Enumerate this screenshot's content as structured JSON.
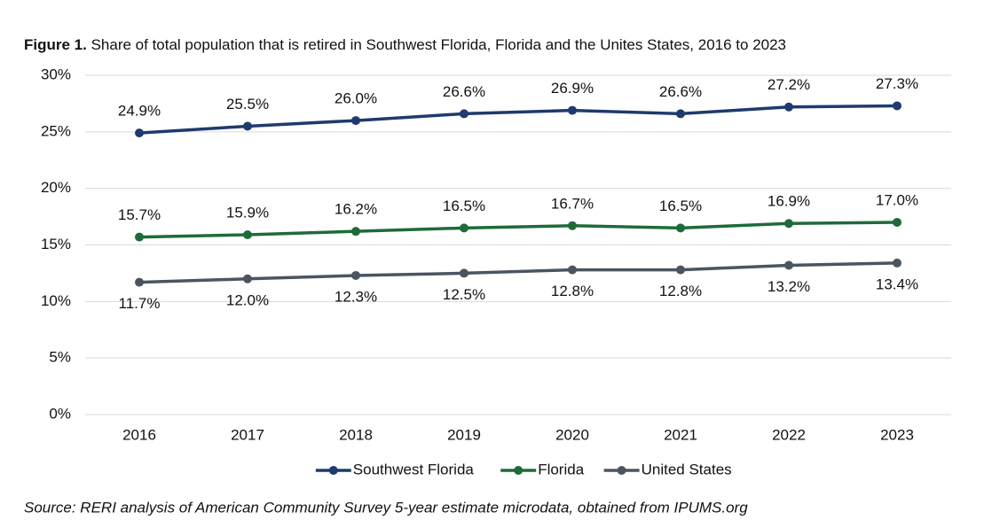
{
  "chart_data": {
    "type": "line",
    "figure_label": "Figure 1.",
    "title": "Share of total population that is retired in Southwest Florida, Florida and the Unites States, 2016 to 2023",
    "categories": [
      "2016",
      "2017",
      "2018",
      "2019",
      "2020",
      "2021",
      "2022",
      "2023"
    ],
    "series": [
      {
        "name": "Southwest Florida",
        "color": "#1f3a6e",
        "values": [
          24.9,
          25.5,
          26.0,
          26.6,
          26.9,
          26.6,
          27.2,
          27.3
        ],
        "value_labels": [
          "24.9%",
          "25.5%",
          "26.0%",
          "26.6%",
          "26.9%",
          "26.6%",
          "27.2%",
          "27.3%"
        ]
      },
      {
        "name": "Florida",
        "color": "#1e6b3a",
        "values": [
          15.7,
          15.9,
          16.2,
          16.5,
          16.7,
          16.5,
          16.9,
          17.0
        ],
        "value_labels": [
          "15.7%",
          "15.9%",
          "16.2%",
          "16.5%",
          "16.7%",
          "16.5%",
          "16.9%",
          "17.0%"
        ]
      },
      {
        "name": "United States",
        "color": "#4a5560",
        "values": [
          11.7,
          12.0,
          12.3,
          12.5,
          12.8,
          12.8,
          13.2,
          13.4
        ],
        "value_labels": [
          "11.7%",
          "12.0%",
          "12.3%",
          "12.5%",
          "12.8%",
          "12.8%",
          "13.2%",
          "13.4%"
        ]
      }
    ],
    "ylim": [
      0,
      30
    ],
    "yticks": [
      {
        "value": 0,
        "label": "0%"
      },
      {
        "value": 5,
        "label": "5%"
      },
      {
        "value": 10,
        "label": "10%"
      },
      {
        "value": 15,
        "label": "15%"
      },
      {
        "value": 20,
        "label": "20%"
      },
      {
        "value": 25,
        "label": "25%"
      },
      {
        "value": 30,
        "label": "30%"
      }
    ],
    "grid": true,
    "legend": "bottom",
    "source": "Source: RERI analysis of American Community Survey 5-year estimate microdata, obtained from IPUMS.org"
  }
}
